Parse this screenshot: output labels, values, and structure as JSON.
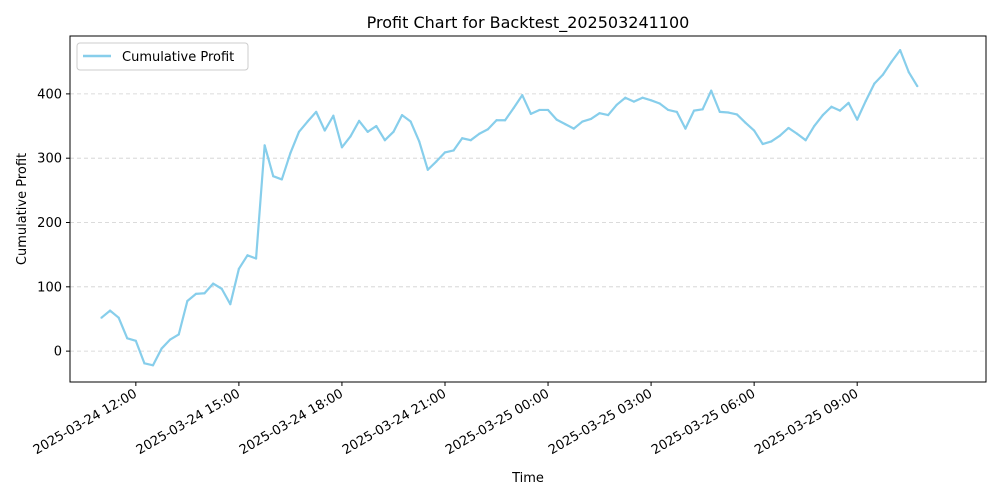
{
  "chart_data": {
    "type": "line",
    "title": "Profit Chart for Backtest_202503241100",
    "xlabel": "Time",
    "ylabel": "Cumulative Profit",
    "xlim": [
      "2025-03-24 10:05",
      "2025-03-25 12:45"
    ],
    "ylim": [
      -48,
      490
    ],
    "y_ticks": [
      0,
      100,
      200,
      300,
      400
    ],
    "x_ticks": [
      {
        "t": "2025-03-24 12:00",
        "label": "2025-03-24 12:00"
      },
      {
        "t": "2025-03-24 15:00",
        "label": "2025-03-24 15:00"
      },
      {
        "t": "2025-03-24 18:00",
        "label": "2025-03-24 18:00"
      },
      {
        "t": "2025-03-24 21:00",
        "label": "2025-03-24 21:00"
      },
      {
        "t": "2025-03-25 00:00",
        "label": "2025-03-25 00:00"
      },
      {
        "t": "2025-03-25 03:00",
        "label": "2025-03-25 03:00"
      },
      {
        "t": "2025-03-25 06:00",
        "label": "2025-03-25 06:00"
      },
      {
        "t": "2025-03-25 09:00",
        "label": "2025-03-25 09:00"
      }
    ],
    "grid": "y-dashed",
    "legend_position": "upper-left",
    "series": [
      {
        "name": "Cumulative Profit",
        "color": "#87ceeb",
        "points": [
          [
            "2025-03-24 11:00",
            52
          ],
          [
            "2025-03-24 11:15",
            63
          ],
          [
            "2025-03-24 11:30",
            52
          ],
          [
            "2025-03-24 11:45",
            20
          ],
          [
            "2025-03-24 12:00",
            16
          ],
          [
            "2025-03-24 12:15",
            -19
          ],
          [
            "2025-03-24 12:30",
            -22
          ],
          [
            "2025-03-24 12:45",
            4
          ],
          [
            "2025-03-24 13:00",
            18
          ],
          [
            "2025-03-24 13:15",
            26
          ],
          [
            "2025-03-24 13:30",
            78
          ],
          [
            "2025-03-24 13:45",
            89
          ],
          [
            "2025-03-24 14:00",
            90
          ],
          [
            "2025-03-24 14:15",
            105
          ],
          [
            "2025-03-24 14:30",
            97
          ],
          [
            "2025-03-24 14:45",
            73
          ],
          [
            "2025-03-24 15:00",
            128
          ],
          [
            "2025-03-24 15:15",
            149
          ],
          [
            "2025-03-24 15:30",
            144
          ],
          [
            "2025-03-24 15:45",
            320
          ],
          [
            "2025-03-24 16:00",
            272
          ],
          [
            "2025-03-24 16:15",
            267
          ],
          [
            "2025-03-24 16:30",
            308
          ],
          [
            "2025-03-24 16:45",
            341
          ],
          [
            "2025-03-24 17:00",
            357
          ],
          [
            "2025-03-24 17:15",
            372
          ],
          [
            "2025-03-24 17:30",
            343
          ],
          [
            "2025-03-24 17:45",
            366
          ],
          [
            "2025-03-24 18:00",
            317
          ],
          [
            "2025-03-24 18:15",
            334
          ],
          [
            "2025-03-24 18:30",
            358
          ],
          [
            "2025-03-24 18:45",
            341
          ],
          [
            "2025-03-24 19:00",
            350
          ],
          [
            "2025-03-24 19:15",
            328
          ],
          [
            "2025-03-24 19:30",
            341
          ],
          [
            "2025-03-24 19:45",
            367
          ],
          [
            "2025-03-24 20:00",
            357
          ],
          [
            "2025-03-24 20:15",
            326
          ],
          [
            "2025-03-24 20:30",
            282
          ],
          [
            "2025-03-24 20:45",
            295
          ],
          [
            "2025-03-24 21:00",
            309
          ],
          [
            "2025-03-24 21:15",
            312
          ],
          [
            "2025-03-24 21:30",
            331
          ],
          [
            "2025-03-24 21:45",
            328
          ],
          [
            "2025-03-24 22:00",
            338
          ],
          [
            "2025-03-24 22:15",
            345
          ],
          [
            "2025-03-24 22:30",
            359
          ],
          [
            "2025-03-24 22:45",
            359
          ],
          [
            "2025-03-24 23:00",
            378
          ],
          [
            "2025-03-24 23:15",
            398
          ],
          [
            "2025-03-24 23:30",
            369
          ],
          [
            "2025-03-24 23:45",
            375
          ],
          [
            "2025-03-25 00:00",
            375
          ],
          [
            "2025-03-25 00:15",
            360
          ],
          [
            "2025-03-25 00:30",
            353
          ],
          [
            "2025-03-25 00:45",
            346
          ],
          [
            "2025-03-25 01:00",
            357
          ],
          [
            "2025-03-25 01:15",
            361
          ],
          [
            "2025-03-25 01:30",
            370
          ],
          [
            "2025-03-25 01:45",
            367
          ],
          [
            "2025-03-25 02:00",
            383
          ],
          [
            "2025-03-25 02:15",
            394
          ],
          [
            "2025-03-25 02:30",
            388
          ],
          [
            "2025-03-25 02:45",
            394
          ],
          [
            "2025-03-25 03:00",
            390
          ],
          [
            "2025-03-25 03:15",
            385
          ],
          [
            "2025-03-25 03:30",
            375
          ],
          [
            "2025-03-25 03:45",
            372
          ],
          [
            "2025-03-25 04:00",
            346
          ],
          [
            "2025-03-25 04:15",
            374
          ],
          [
            "2025-03-25 04:30",
            376
          ],
          [
            "2025-03-25 04:45",
            405
          ],
          [
            "2025-03-25 05:00",
            372
          ],
          [
            "2025-03-25 05:15",
            371
          ],
          [
            "2025-03-25 05:30",
            368
          ],
          [
            "2025-03-25 05:45",
            355
          ],
          [
            "2025-03-25 06:00",
            343
          ],
          [
            "2025-03-25 06:15",
            322
          ],
          [
            "2025-03-25 06:30",
            326
          ],
          [
            "2025-03-25 06:45",
            335
          ],
          [
            "2025-03-25 07:00",
            347
          ],
          [
            "2025-03-25 07:15",
            338
          ],
          [
            "2025-03-25 07:30",
            328
          ],
          [
            "2025-03-25 07:45",
            350
          ],
          [
            "2025-03-25 08:00",
            367
          ],
          [
            "2025-03-25 08:15",
            380
          ],
          [
            "2025-03-25 08:30",
            374
          ],
          [
            "2025-03-25 08:45",
            386
          ],
          [
            "2025-03-25 09:00",
            360
          ],
          [
            "2025-03-25 09:15",
            389
          ],
          [
            "2025-03-25 09:30",
            416
          ],
          [
            "2025-03-25 09:45",
            430
          ],
          [
            "2025-03-25 10:00",
            450
          ],
          [
            "2025-03-25 10:15",
            468
          ],
          [
            "2025-03-25 10:30",
            434
          ],
          [
            "2025-03-25 10:45",
            412
          ]
        ]
      }
    ]
  }
}
